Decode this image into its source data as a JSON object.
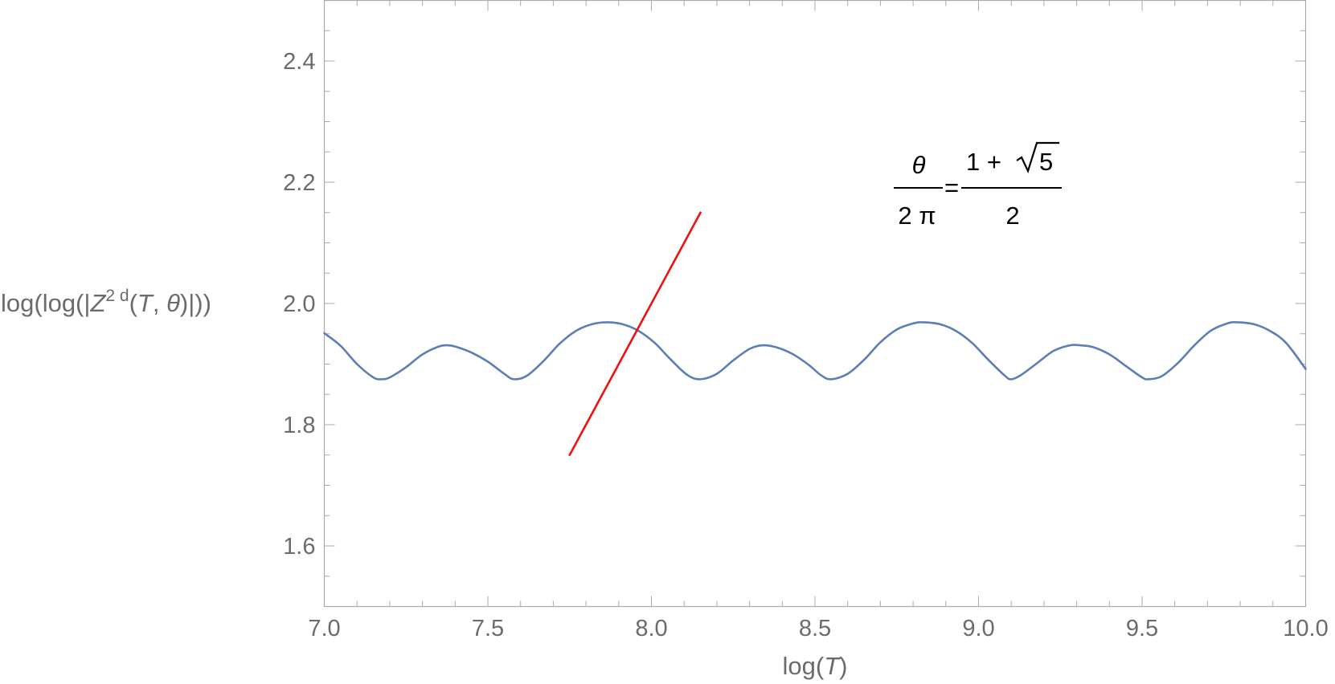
{
  "chart_data": {
    "type": "line",
    "xlim": [
      7.0,
      10.0
    ],
    "ylim": [
      1.5,
      2.5
    ],
    "x_ticks": [
      "7.0",
      "7.5",
      "8.0",
      "8.5",
      "9.0",
      "9.5",
      "10.0"
    ],
    "y_ticks": [
      "1.6",
      "1.8",
      "2.0",
      "2.2",
      "2.4"
    ],
    "xlabel": {
      "prefix": "log(",
      "var": "T",
      "suffix": ")"
    },
    "ylabel": {
      "part1": "log(log(|",
      "var": "Z",
      "sup": "2 d",
      "part2": "(",
      "arg1": "T",
      "comma": ", ",
      "arg2": "θ",
      "part3": ")|))"
    },
    "annotation": {
      "lhs_num": "θ",
      "lhs_den": "2 π",
      "equals": "=",
      "rhs_num_prefix": "1 + ",
      "rhs_sqrt_arg": "5",
      "rhs_den": "2"
    },
    "grid": false,
    "series": [
      {
        "color": "#5b7fb5",
        "points": [
          [
            7.0,
            1.951
          ],
          [
            7.05,
            1.93
          ],
          [
            7.1,
            1.9
          ],
          [
            7.15,
            1.878
          ],
          [
            7.175,
            1.875
          ],
          [
            7.2,
            1.878
          ],
          [
            7.25,
            1.895
          ],
          [
            7.3,
            1.916
          ],
          [
            7.35,
            1.929
          ],
          [
            7.375,
            1.931
          ],
          [
            7.4,
            1.929
          ],
          [
            7.45,
            1.919
          ],
          [
            7.5,
            1.904
          ],
          [
            7.55,
            1.884
          ],
          [
            7.58,
            1.875
          ],
          [
            7.62,
            1.881
          ],
          [
            7.67,
            1.905
          ],
          [
            7.72,
            1.934
          ],
          [
            7.77,
            1.955
          ],
          [
            7.82,
            1.966
          ],
          [
            7.865,
            1.969
          ],
          [
            7.91,
            1.966
          ],
          [
            7.96,
            1.955
          ],
          [
            8.01,
            1.935
          ],
          [
            8.06,
            1.907
          ],
          [
            8.11,
            1.882
          ],
          [
            8.15,
            1.875
          ],
          [
            8.2,
            1.884
          ],
          [
            8.25,
            1.906
          ],
          [
            8.3,
            1.925
          ],
          [
            8.34,
            1.931
          ],
          [
            8.38,
            1.928
          ],
          [
            8.43,
            1.917
          ],
          [
            8.48,
            1.899
          ],
          [
            8.52,
            1.881
          ],
          [
            8.55,
            1.875
          ],
          [
            8.6,
            1.884
          ],
          [
            8.65,
            1.907
          ],
          [
            8.7,
            1.936
          ],
          [
            8.75,
            1.957
          ],
          [
            8.8,
            1.967
          ],
          [
            8.83,
            1.969
          ],
          [
            8.88,
            1.966
          ],
          [
            8.93,
            1.955
          ],
          [
            8.98,
            1.935
          ],
          [
            9.03,
            1.907
          ],
          [
            9.08,
            1.881
          ],
          [
            9.1,
            1.875
          ],
          [
            9.13,
            1.882
          ],
          [
            9.18,
            1.902
          ],
          [
            9.23,
            1.922
          ],
          [
            9.28,
            1.931
          ],
          [
            9.31,
            1.931
          ],
          [
            9.35,
            1.928
          ],
          [
            9.4,
            1.916
          ],
          [
            9.45,
            1.897
          ],
          [
            9.5,
            1.878
          ],
          [
            9.52,
            1.875
          ],
          [
            9.56,
            1.88
          ],
          [
            9.61,
            1.902
          ],
          [
            9.66,
            1.931
          ],
          [
            9.71,
            1.955
          ],
          [
            9.76,
            1.967
          ],
          [
            9.79,
            1.969
          ],
          [
            9.84,
            1.966
          ],
          [
            9.89,
            1.955
          ],
          [
            9.94,
            1.935
          ],
          [
            10.0,
            1.892
          ]
        ]
      },
      {
        "color": "#ee1111",
        "points": [
          [
            7.75,
            1.75
          ],
          [
            8.15,
            2.15
          ]
        ]
      }
    ]
  }
}
